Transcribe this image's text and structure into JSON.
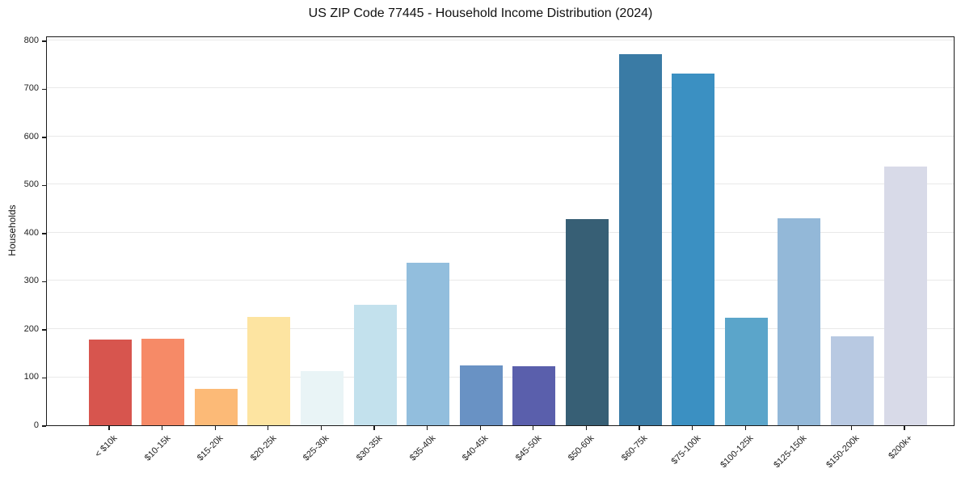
{
  "chart_data": {
    "type": "bar",
    "title": "US ZIP Code 77445 - Household Income Distribution (2024)",
    "xlabel": "",
    "ylabel": "Households",
    "ylim": [
      0,
      810
    ],
    "yticks": [
      0,
      100,
      200,
      300,
      400,
      500,
      600,
      700,
      800
    ],
    "grid": true,
    "legend": false,
    "categories": [
      "< $10k",
      "$10-15k",
      "$15-20k",
      "$20-25k",
      "$25-30k",
      "$30-35k",
      "$35-40k",
      "$40-45k",
      "$45-50k",
      "$50-60k",
      "$60-75k",
      "$75-100k",
      "$100-125k",
      "$125-150k",
      "$150-200k",
      "$200k+"
    ],
    "values": [
      178,
      180,
      76,
      226,
      112,
      251,
      337,
      124,
      122,
      428,
      771,
      731,
      224,
      430,
      185,
      538
    ],
    "bar_colors": [
      "#d7554e",
      "#f68a67",
      "#fcba77",
      "#fde4a1",
      "#e9f4f6",
      "#c3e1ed",
      "#92bedd",
      "#6992c4",
      "#5a5fac",
      "#375f75",
      "#3a7ba5",
      "#3b90c2",
      "#5ba5ca",
      "#93b8d8",
      "#b8c9e2",
      "#d8dae8"
    ]
  }
}
